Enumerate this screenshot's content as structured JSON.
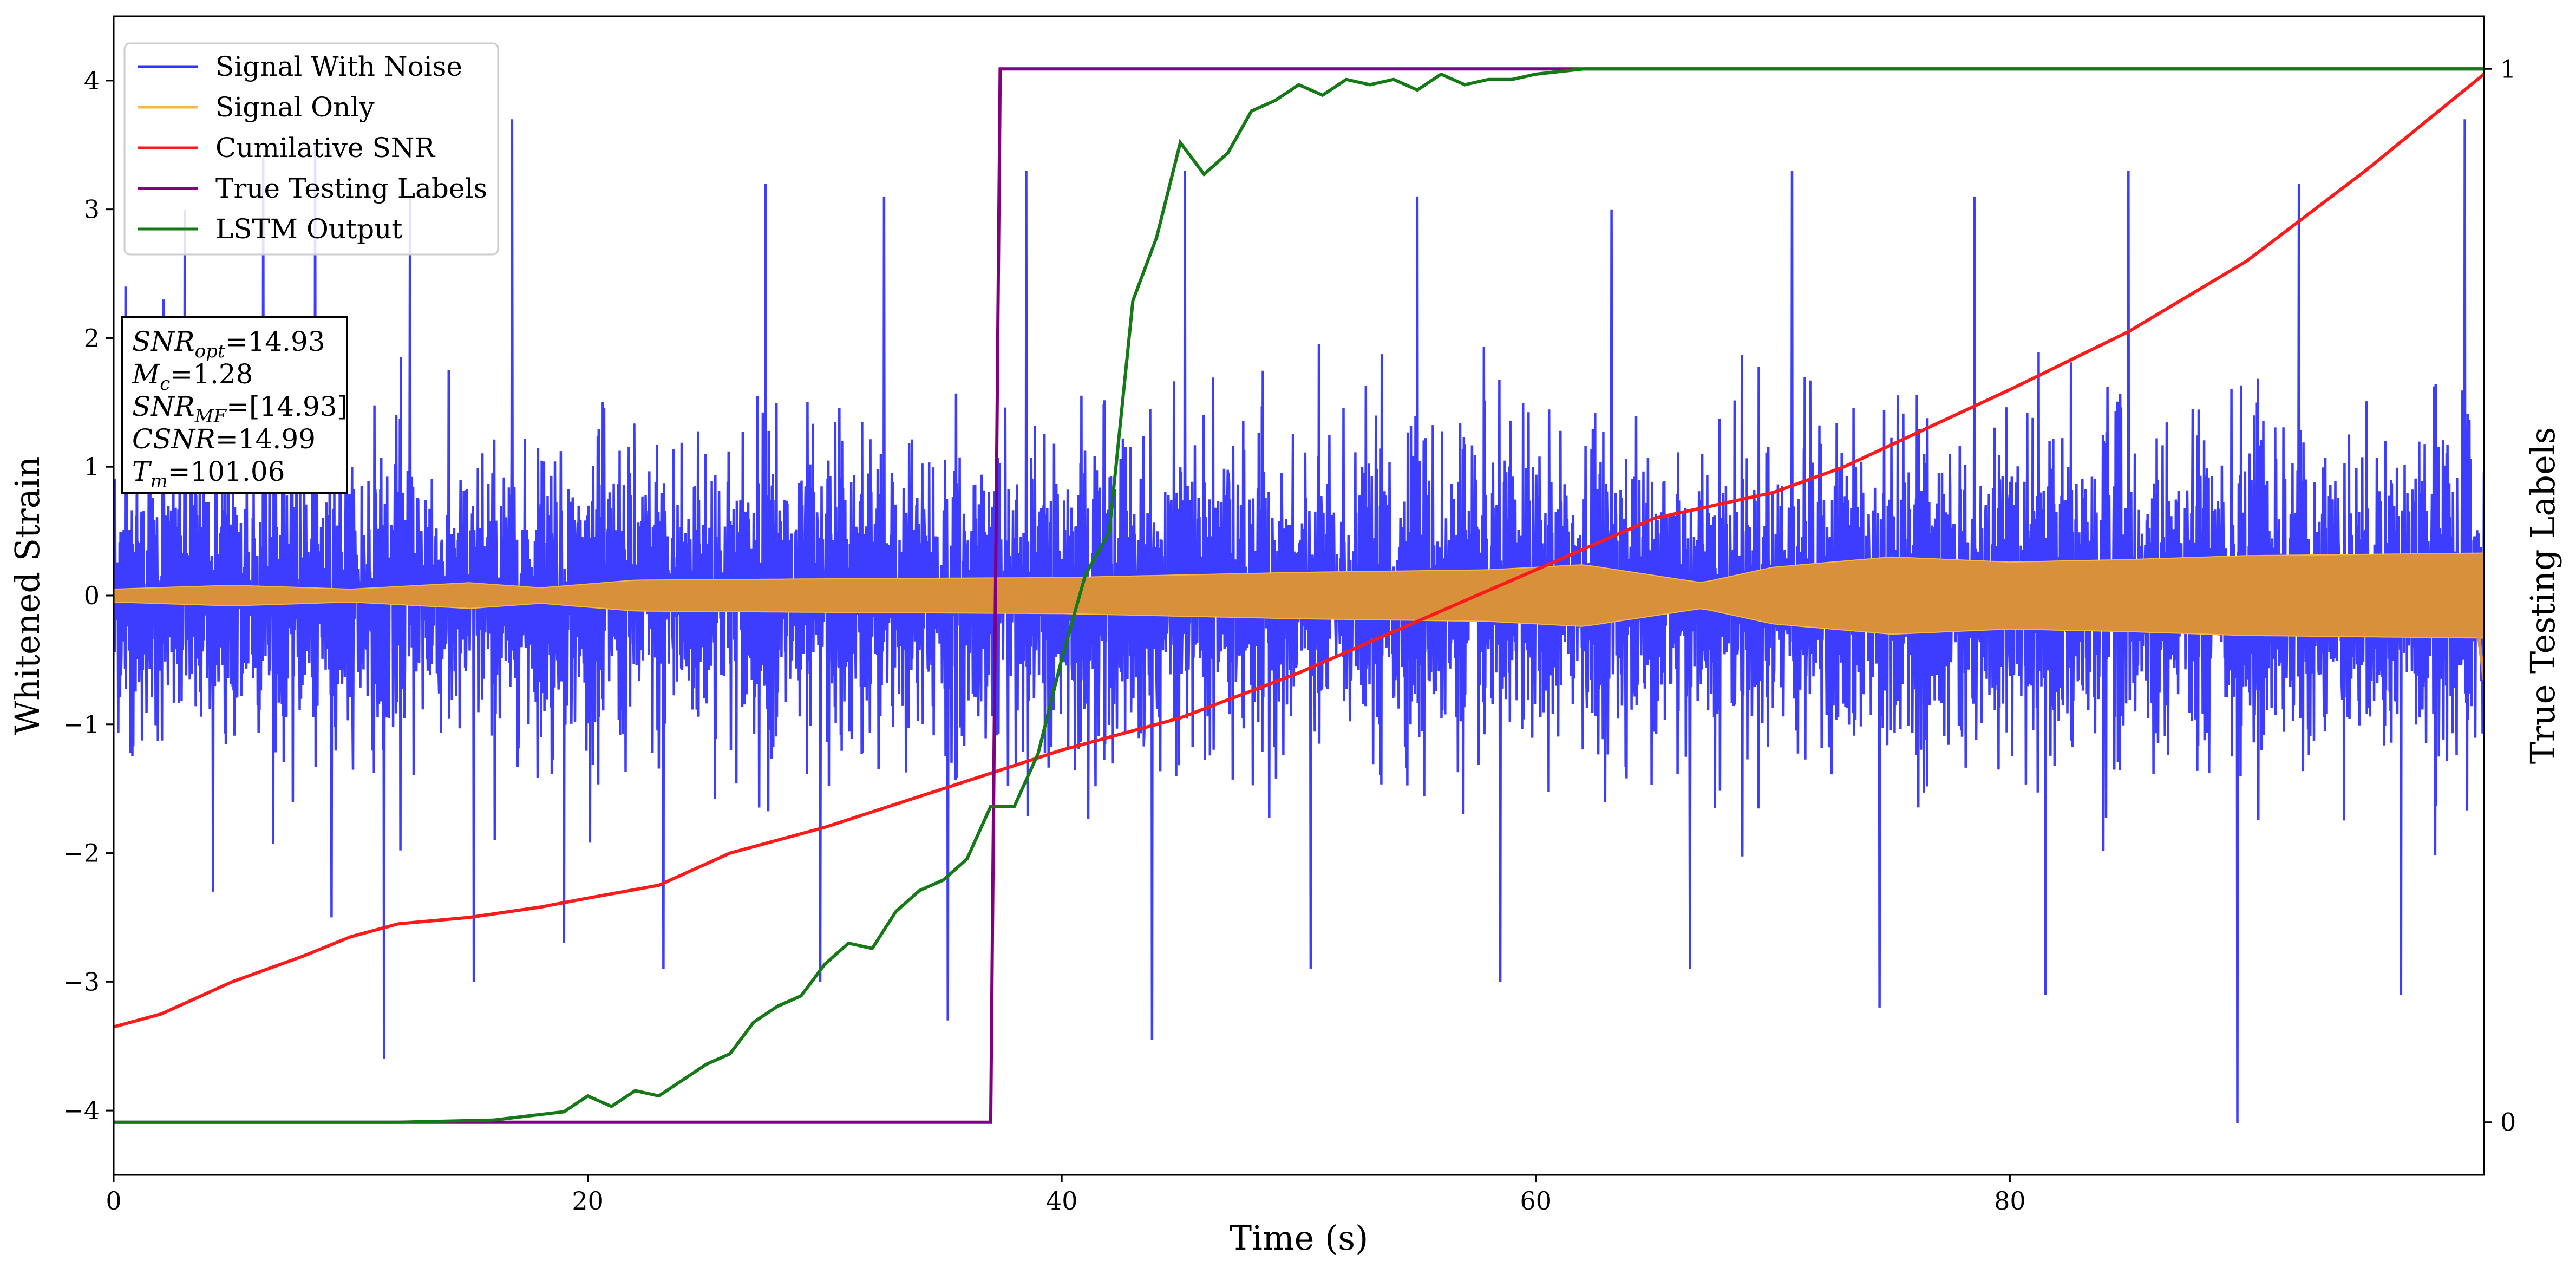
{
  "chart_data": {
    "type": "line",
    "xlabel": "Time (s)",
    "ylabel": "Whitened Strain",
    "y2label": "True Testing Labels",
    "xlim": [
      0,
      100
    ],
    "ylim": [
      -4.5,
      4.5
    ],
    "y2lim": [
      -0.05,
      1.05
    ],
    "x_ticks": [
      "0",
      "20",
      "40",
      "60",
      "80"
    ],
    "y_ticks": [
      "−4",
      "−3",
      "−2",
      "−1",
      "0",
      "1",
      "2",
      "3",
      "4"
    ],
    "y2_ticks": [
      "0",
      "1"
    ],
    "grid": false,
    "legend": {
      "position": "top-left",
      "entries": [
        "Signal With Noise",
        "Signal Only",
        "Cumilative SNR",
        "True Testing Labels",
        "LSTM Output"
      ]
    },
    "colors": {
      "signal_with_noise": "#3333ff",
      "signal_only": "#f5b942",
      "signal_only_fill": "#d9903a",
      "cumulative_snr": "#ff1a1a",
      "true_labels": "#800080",
      "lstm_output": "#157a15"
    },
    "annotation": {
      "lines": [
        {
          "base": "SNR",
          "sub": "opt",
          "rest": "=14.93"
        },
        {
          "base": "M",
          "sub": "c",
          "rest": "=1.28"
        },
        {
          "base": "SNR",
          "sub": "MF",
          "rest": "=[14.93]"
        },
        {
          "base": "CSNR",
          "sub": "",
          "rest": "=14.99"
        },
        {
          "base": "T",
          "sub": "m",
          "rest": "=101.06"
        }
      ]
    },
    "signal_with_noise": {
      "description_range": {
        "min": -4.1,
        "max": 3.7
      },
      "spikes": [
        {
          "x": 0.5,
          "y": 2.4
        },
        {
          "x": 2.1,
          "y": 2.3
        },
        {
          "x": 3.0,
          "y": 3.0
        },
        {
          "x": 4.2,
          "y": -2.3
        },
        {
          "x": 6.3,
          "y": 3.4
        },
        {
          "x": 8.5,
          "y": 3.5
        },
        {
          "x": 9.2,
          "y": -2.5
        },
        {
          "x": 11.4,
          "y": -3.6
        },
        {
          "x": 12.5,
          "y": 3.1
        },
        {
          "x": 15.2,
          "y": -3.0
        },
        {
          "x": 16.8,
          "y": 3.7
        },
        {
          "x": 19.0,
          "y": -2.7
        },
        {
          "x": 23.2,
          "y": -2.9
        },
        {
          "x": 27.5,
          "y": 3.2
        },
        {
          "x": 29.8,
          "y": -3.0
        },
        {
          "x": 32.5,
          "y": 3.1
        },
        {
          "x": 35.2,
          "y": -3.3
        },
        {
          "x": 38.5,
          "y": 3.3
        },
        {
          "x": 43.8,
          "y": -3.45
        },
        {
          "x": 45.2,
          "y": 3.3
        },
        {
          "x": 50.5,
          "y": -2.9
        },
        {
          "x": 55.0,
          "y": 3.1
        },
        {
          "x": 58.5,
          "y": -3.0
        },
        {
          "x": 63.2,
          "y": 3.0
        },
        {
          "x": 66.5,
          "y": -2.9
        },
        {
          "x": 70.8,
          "y": 3.3
        },
        {
          "x": 74.5,
          "y": -3.2
        },
        {
          "x": 78.5,
          "y": 3.1
        },
        {
          "x": 81.5,
          "y": -3.1
        },
        {
          "x": 85.0,
          "y": 3.3
        },
        {
          "x": 89.6,
          "y": -4.1
        },
        {
          "x": 92.2,
          "y": 3.2
        },
        {
          "x": 96.5,
          "y": -3.1
        },
        {
          "x": 99.2,
          "y": 3.7
        }
      ]
    },
    "signal_only": {
      "envelope": [
        {
          "x": 0,
          "y": 0.05
        },
        {
          "x": 5,
          "y": 0.08
        },
        {
          "x": 10,
          "y": 0.05
        },
        {
          "x": 15,
          "y": 0.1
        },
        {
          "x": 18,
          "y": 0.06
        },
        {
          "x": 22,
          "y": 0.12
        },
        {
          "x": 30,
          "y": 0.13
        },
        {
          "x": 40,
          "y": 0.14
        },
        {
          "x": 50,
          "y": 0.18
        },
        {
          "x": 58,
          "y": 0.2
        },
        {
          "x": 62,
          "y": 0.24
        },
        {
          "x": 67,
          "y": 0.1
        },
        {
          "x": 70,
          "y": 0.22
        },
        {
          "x": 75,
          "y": 0.3
        },
        {
          "x": 80,
          "y": 0.26
        },
        {
          "x": 85,
          "y": 0.28
        },
        {
          "x": 90,
          "y": 0.31
        },
        {
          "x": 95,
          "y": 0.32
        },
        {
          "x": 100,
          "y": 0.33
        }
      ]
    },
    "cumulative_snr": {
      "x": [
        0,
        2,
        5,
        8,
        10,
        12,
        15,
        18,
        20,
        23,
        26,
        30,
        35,
        40,
        45,
        50,
        55,
        60,
        65,
        70,
        73,
        80,
        85,
        90,
        95,
        100
      ],
      "y": [
        -3.35,
        -3.25,
        -3.0,
        -2.8,
        -2.65,
        -2.55,
        -2.5,
        -2.42,
        -2.35,
        -2.25,
        -2.0,
        -1.8,
        -1.5,
        -1.2,
        -0.95,
        -0.6,
        -0.2,
        0.2,
        0.6,
        0.8,
        1.0,
        1.6,
        2.05,
        2.6,
        3.3,
        4.05
      ]
    },
    "true_testing_labels": {
      "x": [
        0,
        37.0,
        37.4,
        100
      ],
      "y": [
        0,
        0,
        1,
        1
      ]
    },
    "lstm_output": {
      "x": [
        0,
        12,
        16,
        19,
        20,
        21,
        22,
        23,
        24,
        25,
        26,
        27,
        28,
        29,
        30,
        31,
        32,
        33,
        34,
        35,
        36,
        37,
        38,
        39,
        40,
        41,
        42,
        43,
        44,
        45,
        46,
        47,
        48,
        49,
        50,
        51,
        52,
        53,
        54,
        55,
        56,
        57,
        58,
        59,
        60,
        62,
        65,
        100
      ],
      "y": [
        0,
        0,
        0.002,
        0.01,
        0.025,
        0.015,
        0.03,
        0.025,
        0.04,
        0.055,
        0.065,
        0.095,
        0.11,
        0.12,
        0.15,
        0.17,
        0.165,
        0.2,
        0.22,
        0.23,
        0.25,
        0.3,
        0.3,
        0.35,
        0.44,
        0.52,
        0.56,
        0.78,
        0.84,
        0.93,
        0.9,
        0.92,
        0.96,
        0.97,
        0.985,
        0.975,
        0.99,
        0.985,
        0.99,
        0.98,
        0.995,
        0.985,
        0.99,
        0.99,
        0.995,
        1.0,
        1.0,
        1.0
      ]
    }
  }
}
